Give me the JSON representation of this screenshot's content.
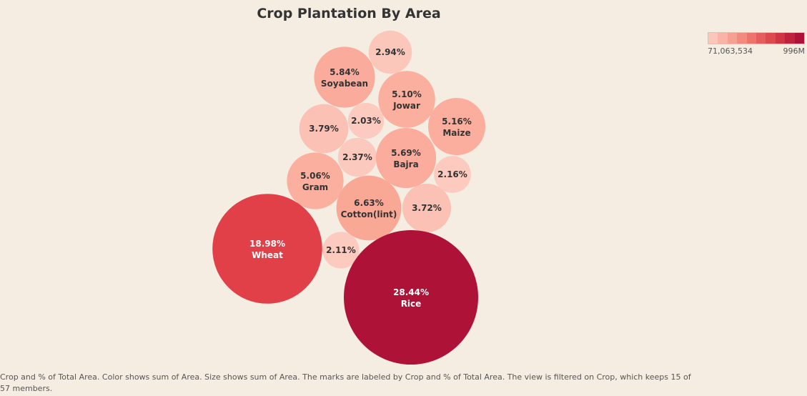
{
  "chart_data": {
    "type": "bubble",
    "title": "Crop Plantation By Area",
    "bubbles": [
      {
        "crop": "",
        "pct": "2.94%",
        "pct_value": 2.94,
        "color": "#fbc7bb"
      },
      {
        "crop": "Soyabean",
        "pct": "5.84%",
        "pct_value": 5.84,
        "color": "#fbab9b"
      },
      {
        "crop": "Jowar",
        "pct": "5.10%",
        "pct_value": 5.1,
        "color": "#fbaf9f"
      },
      {
        "crop": "",
        "pct": "3.79%",
        "pct_value": 3.79,
        "color": "#fbc1b4"
      },
      {
        "crop": "",
        "pct": "2.03%",
        "pct_value": 2.03,
        "color": "#fccabf"
      },
      {
        "crop": "Maize",
        "pct": "5.16%",
        "pct_value": 5.16,
        "color": "#fbae9e"
      },
      {
        "crop": "",
        "pct": "2.37%",
        "pct_value": 2.37,
        "color": "#fcc9be"
      },
      {
        "crop": "Bajra",
        "pct": "5.69%",
        "pct_value": 5.69,
        "color": "#fbac9c"
      },
      {
        "crop": "Gram",
        "pct": "5.06%",
        "pct_value": 5.06,
        "color": "#fbaf9f"
      },
      {
        "crop": "",
        "pct": "2.16%",
        "pct_value": 2.16,
        "color": "#fccabf"
      },
      {
        "crop": "Cotton(lint)",
        "pct": "6.63%",
        "pct_value": 6.63,
        "color": "#faa896"
      },
      {
        "crop": "",
        "pct": "3.72%",
        "pct_value": 3.72,
        "color": "#fbc1b4"
      },
      {
        "crop": "Wheat",
        "pct": "18.98%",
        "pct_value": 18.98,
        "color": "#e24048"
      },
      {
        "crop": "",
        "pct": "2.11%",
        "pct_value": 2.11,
        "color": "#fccabf"
      },
      {
        "crop": "Rice",
        "pct": "28.44%",
        "pct_value": 28.44,
        "color": "#ae1237"
      }
    ],
    "legend": {
      "min_label": "71,063,534",
      "max_label": "996M",
      "ramp": [
        "#fbc7bb",
        "#f9b4a7",
        "#f6a092",
        "#f28a7e",
        "#ed746b",
        "#e55e5b",
        "#dc4a4d",
        "#cf3543",
        "#be223c",
        "#ae1237"
      ]
    }
  },
  "caption": "Crop and % of Total Area.  Color shows sum of Area.  Size shows sum of Area.  The marks are labeled by Crop and % of Total Area. The view is filtered on Crop, which keeps 15 of 57 members."
}
